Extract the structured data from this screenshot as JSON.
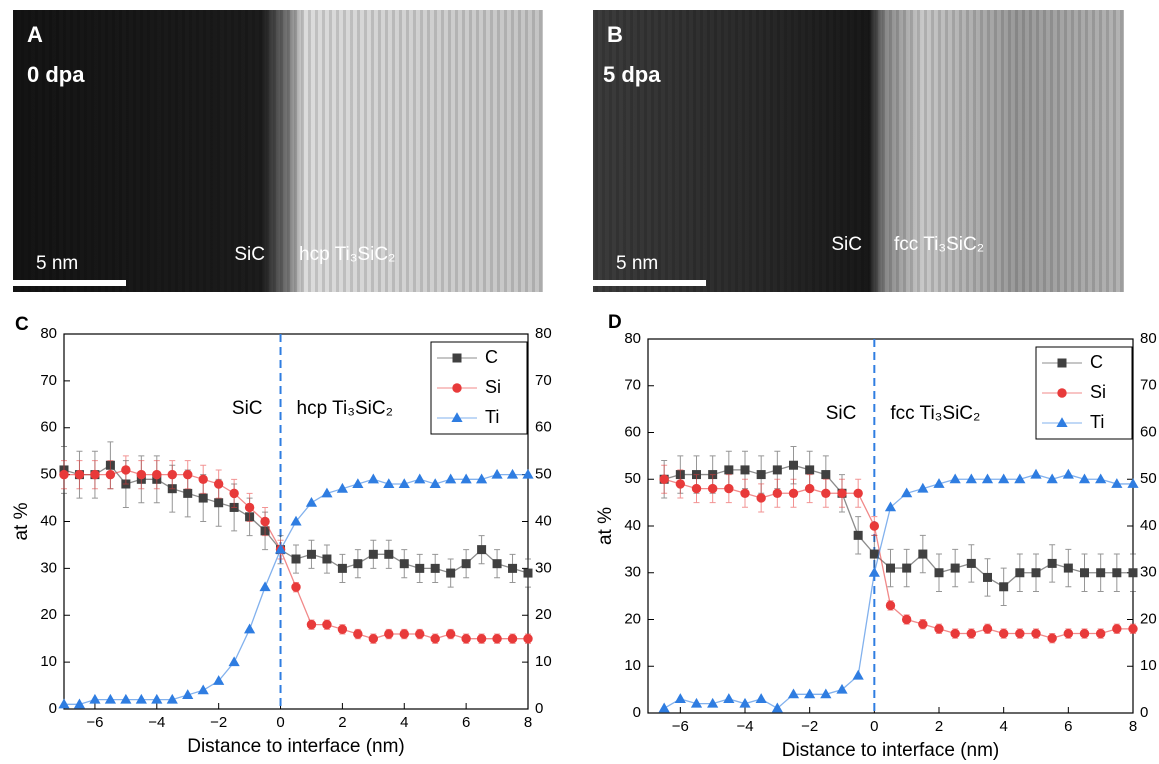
{
  "panels": [
    {
      "label": "A",
      "dose": "0 dpa",
      "regions": [
        "SiC",
        "hcp Ti₃SiC₂"
      ],
      "scale_bar": "5 nm"
    },
    {
      "label": "B",
      "dose": "5 dpa",
      "regions": [
        "SiC",
        "fcc Ti₃SiC₂"
      ],
      "scale_bar": "5 nm"
    }
  ],
  "chart_data": [
    {
      "type": "line",
      "panel_label": "C",
      "xlabel": "Distance to interface (nm)",
      "ylabel": "at %",
      "xlim": [
        -7,
        8
      ],
      "xticks": [
        {
          "value": -6,
          "label": "−6"
        },
        {
          "value": -4,
          "label": "−4"
        },
        {
          "value": -2,
          "label": "−2"
        },
        0,
        2,
        4,
        6,
        8
      ],
      "ylim": [
        0,
        80
      ],
      "yticks": [
        0,
        10,
        20,
        30,
        40,
        50,
        60,
        70,
        80
      ],
      "y2lim": [
        0,
        80
      ],
      "y2ticks": [
        0,
        10,
        20,
        30,
        40,
        50,
        60,
        70,
        80
      ],
      "vline": 0,
      "region_labels": [
        "SiC",
        "hcp Ti₃SiC₂"
      ],
      "legend": "upper right",
      "x": [
        -7,
        -6.5,
        -6,
        -5.5,
        -5,
        -4.5,
        -4,
        -3.5,
        -3,
        -2.5,
        -2,
        -1.5,
        -1,
        -0.5,
        0,
        0.5,
        1,
        1.5,
        2,
        2.5,
        3,
        3.5,
        4,
        4.5,
        5,
        5.5,
        6,
        6.5,
        7,
        7.5,
        8
      ],
      "series": [
        {
          "name": "C",
          "color": "#404040",
          "marker": "square",
          "values": [
            51,
            50,
            50,
            52,
            48,
            49,
            49,
            47,
            46,
            45,
            44,
            43,
            41,
            38,
            34,
            32,
            33,
            32,
            30,
            31,
            33,
            33,
            31,
            30,
            30,
            29,
            31,
            34,
            31,
            30,
            29
          ],
          "errors": [
            5,
            5,
            5,
            5,
            5,
            5,
            5,
            5,
            5,
            5,
            5,
            5,
            4,
            4,
            3,
            3,
            3,
            3,
            3,
            3,
            3,
            3,
            3,
            3,
            3,
            3,
            3,
            3,
            3,
            3,
            3
          ]
        },
        {
          "name": "Si",
          "color": "#e83a3a",
          "marker": "circle",
          "values": [
            50,
            50,
            50,
            50,
            51,
            50,
            50,
            50,
            50,
            49,
            48,
            46,
            43,
            40,
            34,
            26,
            18,
            18,
            17,
            16,
            15,
            16,
            16,
            16,
            15,
            16,
            15,
            15,
            15,
            15,
            15
          ],
          "errors": [
            3,
            3,
            3,
            3,
            3,
            3,
            3,
            3,
            3,
            3,
            3,
            3,
            3,
            3,
            2,
            1,
            1,
            1,
            1,
            1,
            1,
            1,
            1,
            1,
            1,
            1,
            1,
            1,
            1,
            1,
            1
          ]
        },
        {
          "name": "Ti",
          "color": "#2f7de1",
          "marker": "triangle",
          "values": [
            1,
            1,
            2,
            2,
            2,
            2,
            2,
            2,
            3,
            4,
            6,
            10,
            17,
            26,
            34,
            40,
            44,
            46,
            47,
            48,
            49,
            48,
            48,
            49,
            48,
            49,
            49,
            49,
            50,
            50,
            50
          ]
        }
      ]
    },
    {
      "type": "line",
      "panel_label": "D",
      "xlabel": "Distance to interface (nm)",
      "ylabel": "at %",
      "xlim": [
        -7,
        8
      ],
      "xticks": [
        {
          "value": -6,
          "label": "−6"
        },
        {
          "value": -4,
          "label": "−4"
        },
        {
          "value": -2,
          "label": "−2"
        },
        0,
        2,
        4,
        6,
        8
      ],
      "ylim": [
        0,
        80
      ],
      "yticks": [
        0,
        10,
        20,
        30,
        40,
        50,
        60,
        70,
        80
      ],
      "y2lim": [
        0,
        80
      ],
      "y2ticks": [
        0,
        10,
        20,
        30,
        40,
        50,
        60,
        70,
        80
      ],
      "vline": 0,
      "region_labels": [
        "SiC",
        "fcc Ti₃SiC₂"
      ],
      "legend": "upper right",
      "x": [
        -6.5,
        -6,
        -5.5,
        -5,
        -4.5,
        -4,
        -3.5,
        -3,
        -2.5,
        -2,
        -1.5,
        -1,
        -0.5,
        0,
        0.5,
        1,
        1.5,
        2,
        2.5,
        3,
        3.5,
        4,
        4.5,
        5,
        5.5,
        6,
        6.5,
        7,
        7.5,
        8
      ],
      "series": [
        {
          "name": "C",
          "color": "#404040",
          "marker": "square",
          "values": [
            50,
            51,
            51,
            51,
            52,
            52,
            51,
            52,
            53,
            52,
            51,
            47,
            38,
            34,
            31,
            31,
            34,
            30,
            31,
            32,
            29,
            27,
            30,
            30,
            32,
            31,
            30,
            30,
            30,
            30
          ],
          "errors": [
            4,
            4,
            4,
            4,
            4,
            4,
            4,
            4,
            4,
            4,
            4,
            4,
            4,
            4,
            4,
            4,
            4,
            4,
            4,
            4,
            4,
            4,
            4,
            4,
            4,
            4,
            4,
            4,
            4,
            4
          ]
        },
        {
          "name": "Si",
          "color": "#e83a3a",
          "marker": "circle",
          "values": [
            50,
            49,
            48,
            48,
            48,
            47,
            46,
            47,
            47,
            48,
            47,
            47,
            47,
            40,
            23,
            20,
            19,
            18,
            17,
            17,
            18,
            17,
            17,
            17,
            16,
            17,
            17,
            17,
            18,
            18
          ],
          "errors": [
            3,
            3,
            3,
            3,
            3,
            3,
            3,
            3,
            3,
            3,
            3,
            3,
            3,
            2,
            1,
            1,
            1,
            1,
            1,
            1,
            1,
            1,
            1,
            1,
            1,
            1,
            1,
            1,
            1,
            1
          ]
        },
        {
          "name": "Ti",
          "color": "#2f7de1",
          "marker": "triangle",
          "values": [
            1,
            3,
            2,
            2,
            3,
            2,
            3,
            1,
            4,
            4,
            4,
            5,
            8,
            30,
            44,
            47,
            48,
            49,
            50,
            50,
            50,
            50,
            50,
            51,
            50,
            51,
            50,
            50,
            49,
            49
          ]
        }
      ]
    }
  ]
}
